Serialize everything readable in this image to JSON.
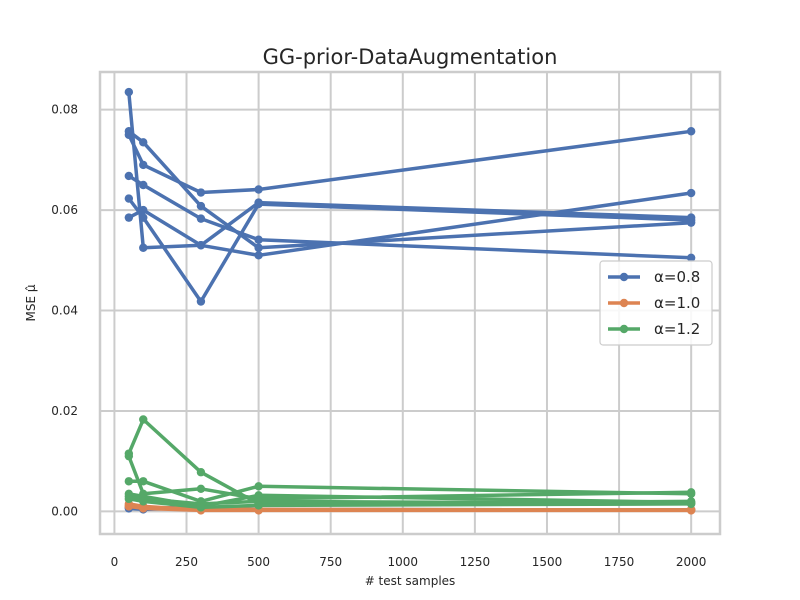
{
  "chart_data": {
    "type": "line",
    "title": "GG-prior-DataAugmentation",
    "xlabel": "# test samples",
    "ylabel": "MSE μ̂",
    "xlim": [
      -50,
      2100
    ],
    "ylim": [
      -0.0045,
      0.0875
    ],
    "xticks": [
      0,
      250,
      500,
      750,
      1000,
      1250,
      1500,
      1750,
      2000
    ],
    "yticks": [
      0.0,
      0.02,
      0.04,
      0.06,
      0.08
    ],
    "ytick_labels": [
      "0.00",
      "0.02",
      "0.04",
      "0.06",
      "0.08"
    ],
    "grid": true,
    "legend_position": "center-right",
    "x": [
      50,
      100,
      300,
      500,
      2000
    ],
    "groups": [
      {
        "legend": "α=0.8",
        "color": "#4c72b0",
        "runs": [
          [
            0.0835,
            0.0525,
            0.053,
            0.0615,
            0.0585
          ],
          [
            0.0757,
            0.0735,
            0.0608,
            0.0525,
            0.0575
          ],
          [
            0.075,
            0.069,
            0.0635,
            0.0641,
            0.0757
          ],
          [
            0.0668,
            0.065,
            0.0583,
            0.0541,
            0.0505
          ],
          [
            0.0623,
            0.0585,
            0.0418,
            0.0612,
            0.058
          ],
          [
            0.0585,
            0.06,
            0.053,
            0.051,
            0.0634
          ],
          [
            0.0008,
            0.0005,
            0.001,
            0.0004,
            0.0003
          ],
          [
            0.0006,
            0.0004,
            0.0008,
            0.0003,
            0.0003
          ]
        ]
      },
      {
        "legend": "α=1.0",
        "color": "#dd8452",
        "runs": [
          [
            0.0015,
            0.001,
            0.0003,
            0.0003,
            0.0003
          ],
          [
            0.0012,
            0.0008,
            0.0005,
            0.0004,
            0.0003
          ],
          [
            0.001,
            0.0006,
            0.0002,
            0.0002,
            0.0002
          ]
        ]
      },
      {
        "legend": "α=1.2",
        "color": "#55a868",
        "runs": [
          [
            0.0115,
            0.0183,
            0.0078,
            0.0015,
            0.002
          ],
          [
            0.011,
            0.0035,
            0.0045,
            0.0025,
            0.0038
          ],
          [
            0.006,
            0.006,
            0.002,
            0.005,
            0.0035
          ],
          [
            0.0035,
            0.003,
            0.001,
            0.0032,
            0.0018
          ],
          [
            0.003,
            0.0025,
            0.0015,
            0.002,
            0.0016
          ],
          [
            0.0025,
            0.002,
            0.0008,
            0.0012,
            0.0015
          ]
        ]
      }
    ]
  }
}
